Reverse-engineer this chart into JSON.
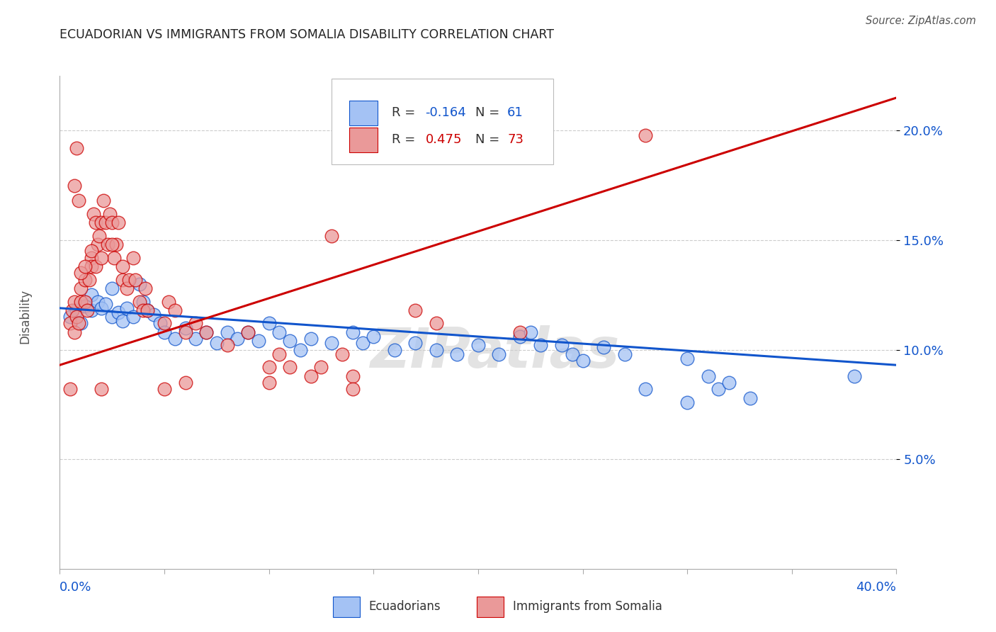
{
  "title": "ECUADORIAN VS IMMIGRANTS FROM SOMALIA DISABILITY CORRELATION CHART",
  "source": "Source: ZipAtlas.com",
  "watermark": "ZIPatlas",
  "ylabel": "Disability",
  "y_ticks": [
    0.05,
    0.1,
    0.15,
    0.2
  ],
  "y_tick_labels": [
    "5.0%",
    "10.0%",
    "15.0%",
    "20.0%"
  ],
  "xlim": [
    0.0,
    0.4
  ],
  "ylim": [
    0.0,
    0.225
  ],
  "blue_color": "#a4c2f4",
  "pink_color": "#ea9999",
  "blue_line_color": "#1155cc",
  "pink_line_color": "#cc0000",
  "blue_trend": [
    0.0,
    0.119,
    0.4,
    0.093
  ],
  "pink_trend": [
    0.0,
    0.093,
    0.4,
    0.215
  ],
  "blue_scatter": [
    [
      0.005,
      0.115
    ],
    [
      0.008,
      0.118
    ],
    [
      0.01,
      0.112
    ],
    [
      0.012,
      0.12
    ],
    [
      0.015,
      0.125
    ],
    [
      0.015,
      0.118
    ],
    [
      0.018,
      0.122
    ],
    [
      0.02,
      0.119
    ],
    [
      0.022,
      0.121
    ],
    [
      0.025,
      0.115
    ],
    [
      0.025,
      0.128
    ],
    [
      0.028,
      0.117
    ],
    [
      0.03,
      0.113
    ],
    [
      0.032,
      0.119
    ],
    [
      0.035,
      0.115
    ],
    [
      0.038,
      0.13
    ],
    [
      0.04,
      0.122
    ],
    [
      0.042,
      0.118
    ],
    [
      0.045,
      0.116
    ],
    [
      0.048,
      0.112
    ],
    [
      0.05,
      0.108
    ],
    [
      0.055,
      0.105
    ],
    [
      0.06,
      0.11
    ],
    [
      0.065,
      0.105
    ],
    [
      0.07,
      0.108
    ],
    [
      0.075,
      0.103
    ],
    [
      0.08,
      0.108
    ],
    [
      0.085,
      0.105
    ],
    [
      0.09,
      0.108
    ],
    [
      0.095,
      0.104
    ],
    [
      0.1,
      0.112
    ],
    [
      0.105,
      0.108
    ],
    [
      0.11,
      0.104
    ],
    [
      0.115,
      0.1
    ],
    [
      0.12,
      0.105
    ],
    [
      0.13,
      0.103
    ],
    [
      0.14,
      0.108
    ],
    [
      0.145,
      0.103
    ],
    [
      0.15,
      0.106
    ],
    [
      0.16,
      0.1
    ],
    [
      0.17,
      0.103
    ],
    [
      0.18,
      0.1
    ],
    [
      0.19,
      0.098
    ],
    [
      0.2,
      0.102
    ],
    [
      0.21,
      0.098
    ],
    [
      0.22,
      0.106
    ],
    [
      0.225,
      0.108
    ],
    [
      0.23,
      0.102
    ],
    [
      0.24,
      0.102
    ],
    [
      0.245,
      0.098
    ],
    [
      0.25,
      0.095
    ],
    [
      0.26,
      0.101
    ],
    [
      0.27,
      0.098
    ],
    [
      0.28,
      0.082
    ],
    [
      0.3,
      0.076
    ],
    [
      0.3,
      0.096
    ],
    [
      0.31,
      0.088
    ],
    [
      0.315,
      0.082
    ],
    [
      0.32,
      0.085
    ],
    [
      0.33,
      0.078
    ],
    [
      0.38,
      0.088
    ]
  ],
  "pink_scatter": [
    [
      0.005,
      0.112
    ],
    [
      0.005,
      0.082
    ],
    [
      0.006,
      0.118
    ],
    [
      0.007,
      0.122
    ],
    [
      0.007,
      0.108
    ],
    [
      0.008,
      0.115
    ],
    [
      0.008,
      0.192
    ],
    [
      0.009,
      0.112
    ],
    [
      0.009,
      0.168
    ],
    [
      0.01,
      0.128
    ],
    [
      0.01,
      0.122
    ],
    [
      0.012,
      0.132
    ],
    [
      0.012,
      0.122
    ],
    [
      0.013,
      0.118
    ],
    [
      0.014,
      0.132
    ],
    [
      0.015,
      0.142
    ],
    [
      0.015,
      0.138
    ],
    [
      0.016,
      0.162
    ],
    [
      0.017,
      0.158
    ],
    [
      0.017,
      0.138
    ],
    [
      0.018,
      0.148
    ],
    [
      0.019,
      0.152
    ],
    [
      0.02,
      0.158
    ],
    [
      0.02,
      0.082
    ],
    [
      0.021,
      0.168
    ],
    [
      0.022,
      0.158
    ],
    [
      0.023,
      0.148
    ],
    [
      0.024,
      0.162
    ],
    [
      0.025,
      0.158
    ],
    [
      0.026,
      0.142
    ],
    [
      0.027,
      0.148
    ],
    [
      0.028,
      0.158
    ],
    [
      0.03,
      0.132
    ],
    [
      0.03,
      0.138
    ],
    [
      0.032,
      0.128
    ],
    [
      0.033,
      0.132
    ],
    [
      0.035,
      0.142
    ],
    [
      0.036,
      0.132
    ],
    [
      0.038,
      0.122
    ],
    [
      0.04,
      0.118
    ],
    [
      0.041,
      0.128
    ],
    [
      0.042,
      0.118
    ],
    [
      0.05,
      0.112
    ],
    [
      0.052,
      0.122
    ],
    [
      0.055,
      0.118
    ],
    [
      0.06,
      0.108
    ],
    [
      0.065,
      0.112
    ],
    [
      0.07,
      0.108
    ],
    [
      0.08,
      0.102
    ],
    [
      0.09,
      0.108
    ],
    [
      0.1,
      0.092
    ],
    [
      0.105,
      0.098
    ],
    [
      0.11,
      0.092
    ],
    [
      0.12,
      0.088
    ],
    [
      0.125,
      0.092
    ],
    [
      0.13,
      0.152
    ],
    [
      0.135,
      0.098
    ],
    [
      0.14,
      0.088
    ],
    [
      0.14,
      0.082
    ],
    [
      0.17,
      0.118
    ],
    [
      0.18,
      0.112
    ],
    [
      0.22,
      0.108
    ],
    [
      0.28,
      0.198
    ],
    [
      0.05,
      0.082
    ],
    [
      0.06,
      0.085
    ],
    [
      0.1,
      0.085
    ],
    [
      0.015,
      0.145
    ],
    [
      0.02,
      0.142
    ],
    [
      0.025,
      0.148
    ],
    [
      0.01,
      0.135
    ],
    [
      0.012,
      0.138
    ],
    [
      0.007,
      0.175
    ]
  ],
  "ecuadorians_label": "Ecuadorians",
  "somalia_label": "Immigrants from Somalia",
  "background_color": "#ffffff",
  "grid_color": "#cccccc",
  "tick_color": "#1155cc",
  "title_color": "#222222",
  "axis_label_color": "#555555"
}
